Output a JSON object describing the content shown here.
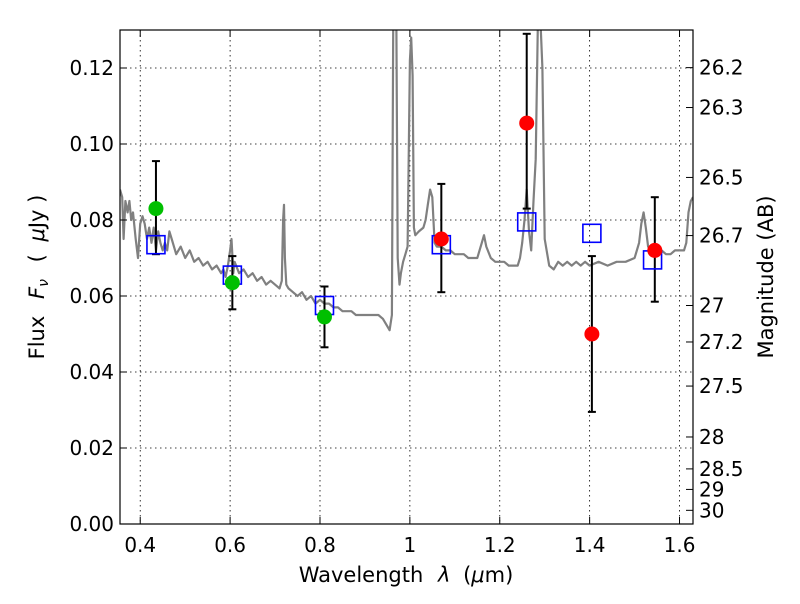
{
  "chart_data": {
    "type": "scatter",
    "xlabel_text": "Wavelength",
    "xlabel_symbol": "λ",
    "xlabel_unit_open": "(",
    "xlabel_unit_mu": "μ",
    "xlabel_unit_rest": "m)",
    "ylabel_text": "Flux",
    "ylabel_symbol": "F",
    "ylabel_symbol_sub": "ν",
    "ylabel_unit_open": "(",
    "ylabel_unit_mu": "μ",
    "ylabel_unit_rest": "Jy )",
    "y2label": "Magnitude (AB)",
    "xlim": [
      0.355,
      1.63
    ],
    "ylim": [
      0.0,
      0.13
    ],
    "grid": true,
    "x_ticks": [
      {
        "value": 0.4,
        "label": "0.4"
      },
      {
        "value": 0.6,
        "label": "0.6"
      },
      {
        "value": 0.8,
        "label": "0.8"
      },
      {
        "value": 1.0,
        "label": "1"
      },
      {
        "value": 1.2,
        "label": "1.2"
      },
      {
        "value": 1.4,
        "label": "1.4"
      },
      {
        "value": 1.6,
        "label": "1.6"
      }
    ],
    "y_ticks": [
      {
        "value": 0.0,
        "label": "0.00"
      },
      {
        "value": 0.02,
        "label": "0.02"
      },
      {
        "value": 0.04,
        "label": "0.04"
      },
      {
        "value": 0.06,
        "label": "0.06"
      },
      {
        "value": 0.08,
        "label": "0.08"
      },
      {
        "value": 0.1,
        "label": "0.10"
      },
      {
        "value": 0.12,
        "label": "0.12"
      }
    ],
    "y2_ticks": [
      {
        "flux": 0.1201,
        "label": "26.2"
      },
      {
        "flux": 0.1096,
        "label": "26.3"
      },
      {
        "flux": 0.0912,
        "label": "26.5"
      },
      {
        "flux": 0.0759,
        "label": "26.7"
      },
      {
        "flux": 0.0575,
        "label": "27"
      },
      {
        "flux": 0.0479,
        "label": "27.2"
      },
      {
        "flux": 0.0363,
        "label": "27.5"
      },
      {
        "flux": 0.0229,
        "label": "28"
      },
      {
        "flux": 0.0145,
        "label": "28.5"
      },
      {
        "flux": 0.0091,
        "label": "29"
      },
      {
        "flux": 0.0036,
        "label": "30"
      }
    ],
    "series": [
      {
        "name": "model-spectrum",
        "kind": "line",
        "color": "#808080",
        "points": [
          [
            0.355,
            0.088
          ],
          [
            0.36,
            0.086
          ],
          [
            0.363,
            0.075
          ],
          [
            0.367,
            0.085
          ],
          [
            0.372,
            0.082
          ],
          [
            0.376,
            0.085
          ],
          [
            0.38,
            0.08
          ],
          [
            0.384,
            0.082
          ],
          [
            0.39,
            0.075
          ],
          [
            0.395,
            0.07
          ],
          [
            0.4,
            0.079
          ],
          [
            0.405,
            0.081
          ],
          [
            0.41,
            0.079
          ],
          [
            0.415,
            0.075
          ],
          [
            0.42,
            0.078
          ],
          [
            0.425,
            0.074
          ],
          [
            0.43,
            0.078
          ],
          [
            0.435,
            0.072
          ],
          [
            0.44,
            0.077
          ],
          [
            0.445,
            0.074
          ],
          [
            0.45,
            0.072
          ],
          [
            0.455,
            0.074
          ],
          [
            0.46,
            0.072
          ],
          [
            0.465,
            0.077
          ],
          [
            0.47,
            0.075
          ],
          [
            0.48,
            0.071
          ],
          [
            0.49,
            0.073
          ],
          [
            0.5,
            0.07
          ],
          [
            0.51,
            0.072
          ],
          [
            0.52,
            0.069
          ],
          [
            0.53,
            0.07
          ],
          [
            0.54,
            0.068
          ],
          [
            0.55,
            0.069
          ],
          [
            0.56,
            0.067
          ],
          [
            0.57,
            0.068
          ],
          [
            0.58,
            0.066
          ],
          [
            0.585,
            0.067
          ],
          [
            0.59,
            0.065
          ],
          [
            0.595,
            0.068
          ],
          [
            0.6,
            0.072
          ],
          [
            0.603,
            0.075
          ],
          [
            0.607,
            0.066
          ],
          [
            0.61,
            0.069
          ],
          [
            0.62,
            0.066
          ],
          [
            0.63,
            0.067
          ],
          [
            0.64,
            0.065
          ],
          [
            0.65,
            0.066
          ],
          [
            0.66,
            0.064
          ],
          [
            0.67,
            0.065
          ],
          [
            0.68,
            0.063
          ],
          [
            0.69,
            0.064
          ],
          [
            0.7,
            0.063
          ],
          [
            0.71,
            0.062
          ],
          [
            0.715,
            0.064
          ],
          [
            0.718,
            0.08
          ],
          [
            0.72,
            0.084
          ],
          [
            0.722,
            0.07
          ],
          [
            0.725,
            0.063
          ],
          [
            0.73,
            0.062
          ],
          [
            0.74,
            0.061
          ],
          [
            0.75,
            0.06
          ],
          [
            0.76,
            0.061
          ],
          [
            0.77,
            0.059
          ],
          [
            0.78,
            0.06
          ],
          [
            0.79,
            0.058
          ],
          [
            0.8,
            0.059
          ],
          [
            0.81,
            0.058
          ],
          [
            0.82,
            0.058
          ],
          [
            0.83,
            0.057
          ],
          [
            0.84,
            0.057
          ],
          [
            0.85,
            0.056
          ],
          [
            0.86,
            0.056
          ],
          [
            0.87,
            0.056
          ],
          [
            0.88,
            0.055
          ],
          [
            0.89,
            0.055
          ],
          [
            0.9,
            0.055
          ],
          [
            0.91,
            0.055
          ],
          [
            0.92,
            0.055
          ],
          [
            0.93,
            0.055
          ],
          [
            0.94,
            0.054
          ],
          [
            0.95,
            0.052
          ],
          [
            0.955,
            0.051
          ],
          [
            0.96,
            0.055
          ],
          [
            0.963,
            0.13
          ],
          [
            0.966,
            0.135
          ],
          [
            0.97,
            0.13
          ],
          [
            0.973,
            0.07
          ],
          [
            0.977,
            0.063
          ],
          [
            0.98,
            0.066
          ],
          [
            0.985,
            0.069
          ],
          [
            0.99,
            0.071
          ],
          [
            0.995,
            0.073
          ],
          [
            1.0,
            0.122
          ],
          [
            1.003,
            0.128
          ],
          [
            1.006,
            0.118
          ],
          [
            1.009,
            0.078
          ],
          [
            1.012,
            0.076
          ],
          [
            1.02,
            0.077
          ],
          [
            1.03,
            0.078
          ],
          [
            1.035,
            0.08
          ],
          [
            1.04,
            0.084
          ],
          [
            1.045,
            0.088
          ],
          [
            1.05,
            0.086
          ],
          [
            1.055,
            0.074
          ],
          [
            1.06,
            0.073
          ],
          [
            1.07,
            0.073
          ],
          [
            1.08,
            0.072
          ],
          [
            1.09,
            0.072
          ],
          [
            1.1,
            0.071
          ],
          [
            1.11,
            0.071
          ],
          [
            1.12,
            0.071
          ],
          [
            1.13,
            0.07
          ],
          [
            1.14,
            0.07
          ],
          [
            1.15,
            0.07
          ],
          [
            1.16,
            0.074
          ],
          [
            1.165,
            0.076
          ],
          [
            1.17,
            0.073
          ],
          [
            1.18,
            0.07
          ],
          [
            1.19,
            0.069
          ],
          [
            1.2,
            0.069
          ],
          [
            1.21,
            0.069
          ],
          [
            1.22,
            0.068
          ],
          [
            1.23,
            0.068
          ],
          [
            1.24,
            0.068
          ],
          [
            1.245,
            0.07
          ],
          [
            1.25,
            0.074
          ],
          [
            1.255,
            0.08
          ],
          [
            1.26,
            0.088
          ],
          [
            1.265,
            0.077
          ],
          [
            1.27,
            0.072
          ],
          [
            1.275,
            0.085
          ],
          [
            1.28,
            0.096
          ],
          [
            1.285,
            0.134
          ],
          [
            1.29,
            0.134
          ],
          [
            1.295,
            0.12
          ],
          [
            1.3,
            0.075
          ],
          [
            1.31,
            0.068
          ],
          [
            1.32,
            0.067
          ],
          [
            1.33,
            0.069
          ],
          [
            1.34,
            0.068
          ],
          [
            1.35,
            0.069
          ],
          [
            1.36,
            0.068
          ],
          [
            1.37,
            0.069
          ],
          [
            1.38,
            0.068
          ],
          [
            1.39,
            0.069
          ],
          [
            1.4,
            0.068
          ],
          [
            1.42,
            0.069
          ],
          [
            1.44,
            0.068
          ],
          [
            1.46,
            0.069
          ],
          [
            1.48,
            0.069
          ],
          [
            1.5,
            0.07
          ],
          [
            1.51,
            0.074
          ],
          [
            1.515,
            0.079
          ],
          [
            1.52,
            0.082
          ],
          [
            1.525,
            0.078
          ],
          [
            1.53,
            0.073
          ],
          [
            1.54,
            0.071
          ],
          [
            1.55,
            0.071
          ],
          [
            1.56,
            0.072
          ],
          [
            1.57,
            0.071
          ],
          [
            1.58,
            0.071
          ],
          [
            1.59,
            0.072
          ],
          [
            1.6,
            0.072
          ],
          [
            1.61,
            0.072
          ],
          [
            1.615,
            0.074
          ],
          [
            1.62,
            0.082
          ],
          [
            1.625,
            0.085
          ],
          [
            1.63,
            0.086
          ]
        ]
      },
      {
        "name": "model-photometry",
        "kind": "marker",
        "marker": "open-square",
        "color": "#0000ff",
        "points": [
          [
            0.435,
            0.0735
          ],
          [
            0.605,
            0.0655
          ],
          [
            0.81,
            0.0575
          ],
          [
            1.07,
            0.0735
          ],
          [
            1.26,
            0.0795
          ],
          [
            1.405,
            0.0765
          ],
          [
            1.54,
            0.0695
          ]
        ]
      },
      {
        "name": "observed-optical",
        "kind": "marker",
        "marker": "filled-circle",
        "color": "#00bf00",
        "points": [
          {
            "x": 0.435,
            "y": 0.083,
            "yerr_low": 0.071,
            "yerr_high": 0.0955
          },
          {
            "x": 0.605,
            "y": 0.0635,
            "yerr_low": 0.0565,
            "yerr_high": 0.0705
          },
          {
            "x": 0.81,
            "y": 0.0545,
            "yerr_low": 0.0465,
            "yerr_high": 0.0625
          }
        ]
      },
      {
        "name": "observed-nir",
        "kind": "marker",
        "marker": "filled-circle",
        "color": "#ff0000",
        "points": [
          {
            "x": 1.07,
            "y": 0.075,
            "yerr_low": 0.061,
            "yerr_high": 0.0895
          },
          {
            "x": 1.26,
            "y": 0.1055,
            "yerr_low": 0.083,
            "yerr_high": 0.129
          },
          {
            "x": 1.405,
            "y": 0.05,
            "yerr_low": 0.0295,
            "yerr_high": 0.0705
          },
          {
            "x": 1.545,
            "y": 0.072,
            "yerr_low": 0.0585,
            "yerr_high": 0.086
          }
        ]
      }
    ]
  }
}
